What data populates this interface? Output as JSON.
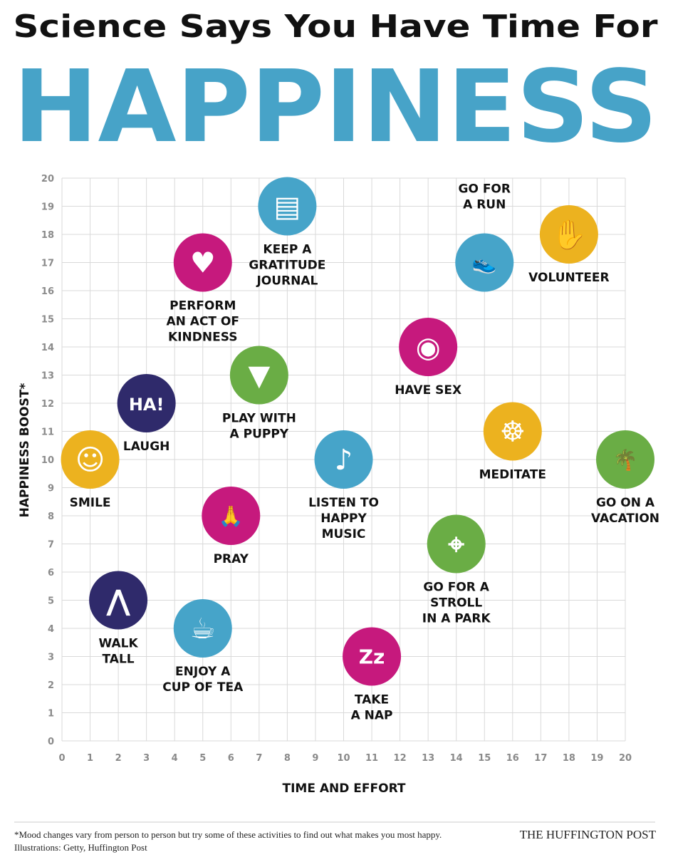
{
  "header": {
    "line1": "Science Says You Have Time For",
    "line2": "HAPPINESS"
  },
  "chart_data": {
    "type": "scatter",
    "xlabel": "TIME AND EFFORT",
    "ylabel": "HAPPINESS BOOST*",
    "xlim": [
      0,
      20
    ],
    "ylim": [
      0,
      20
    ],
    "xticks": [
      "0",
      "1",
      "2",
      "3",
      "4",
      "5",
      "6",
      "7",
      "8",
      "9",
      "10",
      "11",
      "12",
      "13",
      "14",
      "15",
      "16",
      "17",
      "18",
      "19",
      "20"
    ],
    "yticks": [
      "0",
      "1",
      "2",
      "3",
      "4",
      "5",
      "6",
      "7",
      "8",
      "9",
      "10",
      "11",
      "12",
      "13",
      "14",
      "15",
      "16",
      "17",
      "18",
      "19",
      "20"
    ],
    "grid": true,
    "points": [
      {
        "label": [
          "SMILE"
        ],
        "x": 1,
        "y": 10,
        "color": "#ecb21f",
        "icon": "smiling-woman-icon",
        "glyph": "☺"
      },
      {
        "label": [
          "LAUGH"
        ],
        "x": 3,
        "y": 12,
        "color": "#2f2a6b",
        "icon": "speech-bubble-ha-icon",
        "glyph": "HA!"
      },
      {
        "label": [
          "WALK",
          "TALL"
        ],
        "x": 2,
        "y": 5,
        "color": "#2f2a6b",
        "icon": "walking-legs-icon",
        "glyph": "⋀"
      },
      {
        "label": [
          "ENJOY A",
          "CUP OF TEA"
        ],
        "x": 5,
        "y": 4,
        "color": "#46a4c9",
        "icon": "teapot-icon",
        "glyph": "☕"
      },
      {
        "label": [
          "PRAY"
        ],
        "x": 6,
        "y": 8,
        "color": "#c6197d",
        "icon": "praying-hands-icon",
        "glyph": "🙏"
      },
      {
        "label": [
          "PERFORM",
          "AN ACT OF",
          "KINDNESS"
        ],
        "x": 5,
        "y": 17,
        "color": "#c6197d",
        "icon": "heart-icon",
        "glyph": "♥"
      },
      {
        "label": [
          "KEEP A",
          "GRATITUDE",
          "JOURNAL"
        ],
        "x": 8,
        "y": 19,
        "color": "#46a4c9",
        "icon": "notebook-icon",
        "glyph": "▤"
      },
      {
        "label": [
          "PLAY WITH",
          "A PUPPY"
        ],
        "x": 7,
        "y": 13,
        "color": "#6aad45",
        "icon": "puppy-icon",
        "glyph": "▼"
      },
      {
        "label": [
          "LISTEN TO",
          "HAPPY",
          "MUSIC"
        ],
        "x": 10,
        "y": 10,
        "color": "#46a4c9",
        "icon": "music-note-icon",
        "glyph": "♪"
      },
      {
        "label": [
          "TAKE",
          "A NAP"
        ],
        "x": 11,
        "y": 3,
        "color": "#c6197d",
        "icon": "sleep-cloud-icon",
        "glyph": "Zz"
      },
      {
        "label": [
          "HAVE SEX"
        ],
        "x": 13,
        "y": 14,
        "color": "#c6197d",
        "icon": "lips-icon",
        "glyph": "◉"
      },
      {
        "label": [
          "GO FOR A",
          "STROLL",
          "IN A PARK"
        ],
        "x": 14,
        "y": 7,
        "color": "#6aad45",
        "icon": "map-pin-icon",
        "glyph": "⌖"
      },
      {
        "label": [
          "GO FOR",
          "A RUN"
        ],
        "x": 15,
        "y": 17,
        "color": "#46a4c9",
        "icon": "sneaker-icon",
        "glyph": "👟"
      },
      {
        "label": [
          "VOLUNTEER"
        ],
        "x": 18,
        "y": 18,
        "color": "#ecb21f",
        "icon": "raised-hand-icon",
        "glyph": "✋"
      },
      {
        "label": [
          "MEDITATE"
        ],
        "x": 16,
        "y": 11,
        "color": "#ecb21f",
        "icon": "meditation-icon",
        "glyph": "☸"
      },
      {
        "label": [
          "GO ON A",
          "VACATION"
        ],
        "x": 20,
        "y": 10,
        "color": "#6aad45",
        "icon": "palm-tree-icon",
        "glyph": "🌴"
      }
    ]
  },
  "footer": {
    "note": "*Mood changes vary from person to person but try some of these activities to find out what makes you most happy.",
    "credits": "Illustrations: Getty, Huffington Post",
    "brand": "THE HUFFINGTON POST"
  },
  "colors": {
    "title_blue": "#47a3c8",
    "grid": "#d9d9d9",
    "tick": "#8a8a8a"
  }
}
